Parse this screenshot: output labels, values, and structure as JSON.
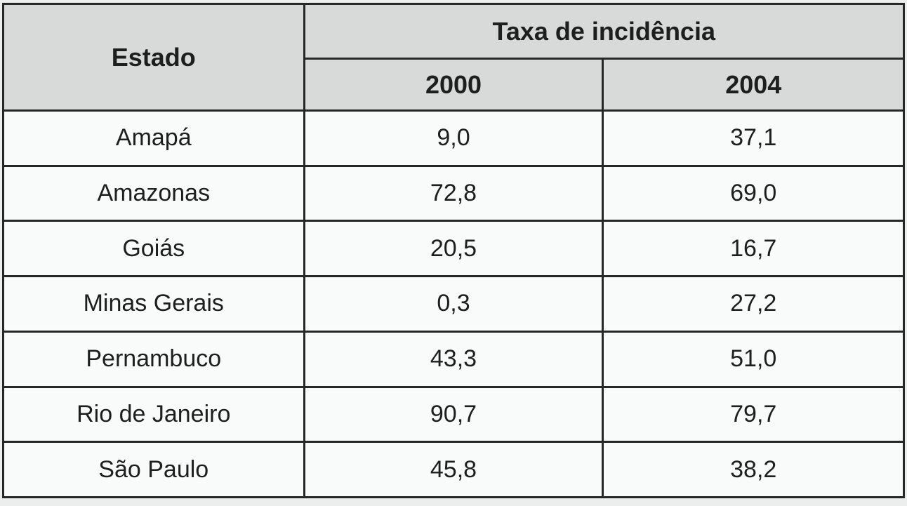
{
  "table": {
    "header_estado": "Estado",
    "header_group": "Taxa de incidência",
    "header_2000": "2000",
    "header_2004": "2004",
    "rows": [
      {
        "estado": "Amapá",
        "y2000": "9,0",
        "y2004": "37,1"
      },
      {
        "estado": "Amazonas",
        "y2000": "72,8",
        "y2004": "69,0"
      },
      {
        "estado": "Goiás",
        "y2000": "20,5",
        "y2004": "16,7"
      },
      {
        "estado": "Minas Gerais",
        "y2000": "0,3",
        "y2004": "27,2"
      },
      {
        "estado": "Pernambuco",
        "y2000": "43,3",
        "y2004": "51,0"
      },
      {
        "estado": "Rio de Janeiro",
        "y2000": "90,7",
        "y2004": "79,7"
      },
      {
        "estado": "São Paulo",
        "y2000": "45,8",
        "y2004": "38,2"
      }
    ]
  },
  "colors": {
    "header_background": "#d8dada",
    "body_background": "#f9fafa",
    "border": "#272727",
    "page_background": "#eceded",
    "text": "#1e1e1e"
  },
  "chart_data": {
    "type": "table",
    "title": "Taxa de incidência",
    "columns": [
      "Estado",
      "2000",
      "2004"
    ],
    "rows": [
      [
        "Amapá",
        9.0,
        37.1
      ],
      [
        "Amazonas",
        72.8,
        69.0
      ],
      [
        "Goiás",
        20.5,
        16.7
      ],
      [
        "Minas Gerais",
        0.3,
        27.2
      ],
      [
        "Pernambuco",
        43.3,
        51.0
      ],
      [
        "Rio de Janeiro",
        90.7,
        79.7
      ],
      [
        "São Paulo",
        45.8,
        38.2
      ]
    ],
    "notes": "Decimal values shown with comma separator in the rendered table"
  }
}
